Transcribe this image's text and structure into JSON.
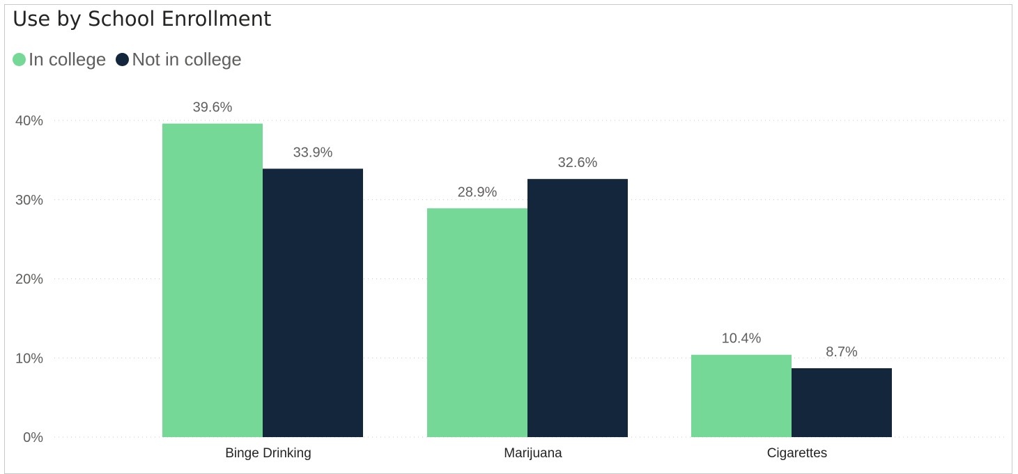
{
  "chart_data": {
    "type": "bar",
    "title": "Use by School Enrollment",
    "categories": [
      "Binge Drinking",
      "Marijuana",
      "Cigarettes"
    ],
    "series": [
      {
        "name": "In college",
        "color": "#76d897",
        "values": [
          39.6,
          28.9,
          10.4
        ],
        "labels": [
          "39.6%",
          "28.9%",
          "10.4%"
        ]
      },
      {
        "name": "Not in college",
        "color": "#13263b",
        "values": [
          33.9,
          32.6,
          8.7
        ],
        "labels": [
          "33.9%",
          "32.6%",
          "8.7%"
        ]
      }
    ],
    "yticks": [
      0,
      10,
      20,
      30,
      40
    ],
    "ytick_labels": [
      "0%",
      "10%",
      "20%",
      "30%",
      "40%"
    ],
    "ylim": [
      0,
      40
    ],
    "grid": true,
    "legend": "top-left"
  }
}
